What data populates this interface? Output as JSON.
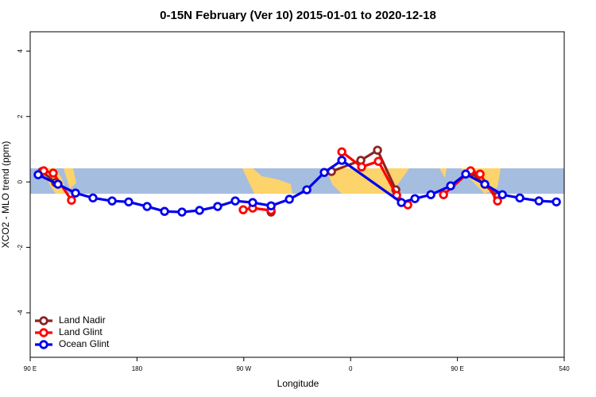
{
  "chart_data": {
    "type": "line",
    "title": "0-15N February (Ver 10)   2015-01-01 to 2020-12-18",
    "x_label": "Longitude",
    "y_label": "XCO2 - MLO trend (ppm)",
    "xlim": [
      90,
      540
    ],
    "ylim": [
      -5.36,
      4.59
    ],
    "xticks": [
      {
        "value": 90,
        "label": "90 E"
      },
      180,
      {
        "value": 270,
        "label": "90 W"
      },
      {
        "value": 360,
        "label": "0"
      },
      {
        "value": 450,
        "label": "90 E"
      },
      540
    ],
    "yticks": [
      -4,
      -2,
      0,
      2,
      4
    ],
    "legend": "bottom-left",
    "series": [
      {
        "name": "Land Nadir",
        "color": "#8b2525",
        "x": [
          100,
          111.4,
          null,
          293,
          null,
          343.9,
          368.6,
          382.7,
          398.1,
          null,
          461.7,
          483.8
        ],
        "values": [
          0.32,
          -0.02,
          null,
          -0.92,
          null,
          0.32,
          0.66,
          0.97,
          -0.24,
          null,
          0.29,
          -0.44
        ]
      },
      {
        "name": "Land Glint",
        "color": "#ff0000",
        "x": [
          101.4,
          109.4,
          124.8,
          null,
          269.5,
          277.5,
          293,
          null,
          352.6,
          369.3,
          383.4,
          398.8,
          408.2,
          null,
          438.3,
          461.1,
          469.1,
          483.8
        ],
        "values": [
          0.34,
          0.27,
          -0.56,
          null,
          -0.85,
          -0.8,
          -0.87,
          null,
          0.92,
          0.46,
          0.63,
          -0.41,
          -0.7,
          null,
          -0.39,
          0.34,
          0.24,
          -0.58
        ]
      },
      {
        "name": "Ocean Glint",
        "color": "#0000ee",
        "x": [
          96.7,
          113.4,
          128.2,
          142.9,
          159,
          173,
          188.5,
          203.2,
          217.9,
          232.7,
          248,
          262.8,
          277.5,
          293,
          308.4,
          323.1,
          337.8,
          352.6,
          402.8,
          414.2,
          427.6,
          444.3,
          457,
          473.1,
          487.9,
          502.6,
          518.7,
          533.4
        ],
        "values": [
          0.22,
          -0.07,
          -0.34,
          -0.49,
          -0.58,
          -0.61,
          -0.75,
          -0.9,
          -0.92,
          -0.87,
          -0.75,
          -0.58,
          -0.63,
          -0.73,
          -0.53,
          -0.24,
          0.29,
          0.66,
          -0.63,
          -0.51,
          -0.39,
          -0.12,
          0.24,
          -0.07,
          -0.39,
          -0.49,
          -0.58,
          -0.61
        ]
      }
    ]
  }
}
